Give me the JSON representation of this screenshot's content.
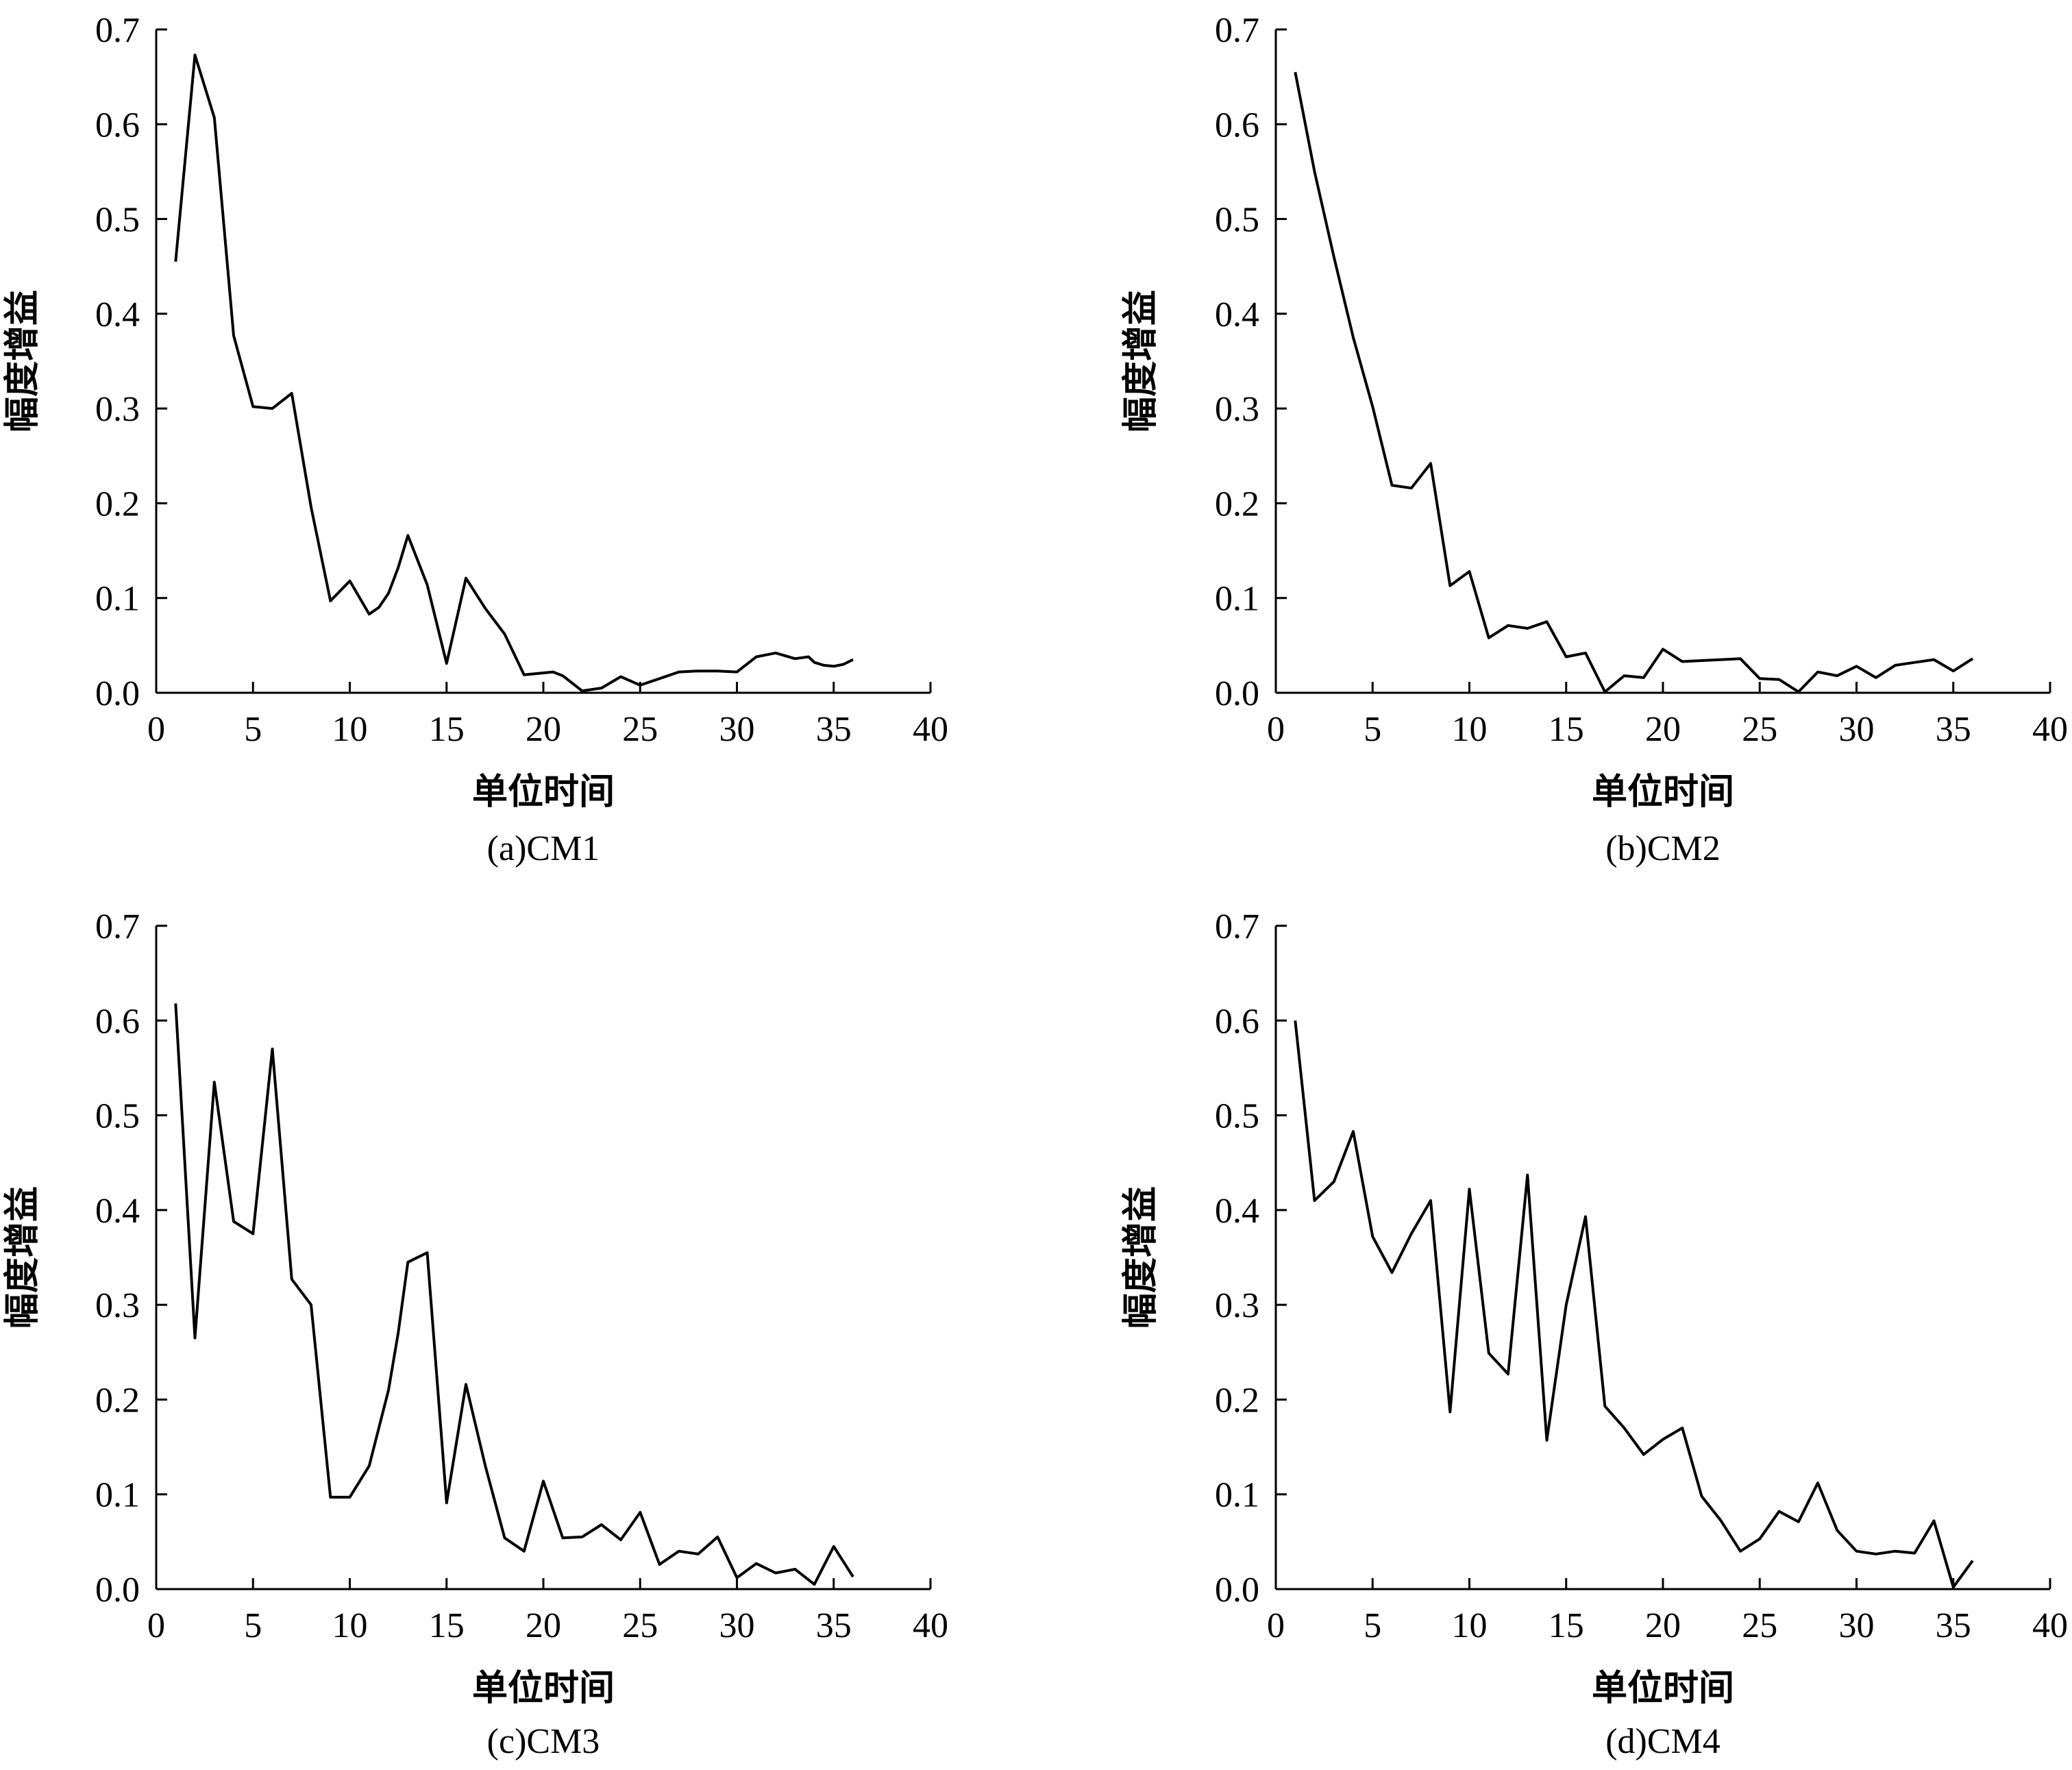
{
  "chart_data": [
    {
      "type": "line",
      "caption": "(a)CM1",
      "xlabel": "单位时间",
      "ylabel": "幅度增益",
      "xlim": [
        0,
        40
      ],
      "ylim": [
        0,
        0.7
      ],
      "xticks": [
        "0",
        "5",
        "10",
        "15",
        "20",
        "25",
        "30",
        "35",
        "40"
      ],
      "yticks": [
        "0.0",
        "0.1",
        "0.2",
        "0.3",
        "0.4",
        "0.5",
        "0.6",
        "0.7"
      ],
      "x": [
        1,
        2,
        3,
        4,
        5,
        6,
        7,
        8,
        9,
        10,
        11,
        11.5,
        12,
        12.5,
        13,
        14,
        15,
        16,
        17,
        18,
        19,
        20,
        20.5,
        21,
        22,
        23,
        24,
        25,
        26,
        27,
        28,
        29,
        30,
        31,
        32,
        33,
        33.7,
        34,
        34.5,
        35,
        35.5,
        36
      ],
      "values": [
        0.455,
        0.673,
        0.607,
        0.377,
        0.302,
        0.3,
        0.316,
        0.196,
        0.097,
        0.118,
        0.083,
        0.09,
        0.105,
        0.132,
        0.166,
        0.114,
        0.031,
        0.121,
        0.089,
        0.062,
        0.019,
        0.021,
        0.022,
        0.018,
        0.002,
        0.005,
        0.017,
        0.008,
        0.015,
        0.022,
        0.023,
        0.023,
        0.022,
        0.038,
        0.042,
        0.036,
        0.038,
        0.032,
        0.029,
        0.028,
        0.03,
        0.035
      ]
    },
    {
      "type": "line",
      "caption": "(b)CM2",
      "xlabel": "单位时间",
      "ylabel": "幅度增益",
      "xlim": [
        0,
        40
      ],
      "ylim": [
        0,
        0.7
      ],
      "xticks": [
        "0",
        "5",
        "10",
        "15",
        "20",
        "25",
        "30",
        "35",
        "40"
      ],
      "yticks": [
        "0.0",
        "0.1",
        "0.2",
        "0.3",
        "0.4",
        "0.5",
        "0.6",
        "0.7"
      ],
      "x": [
        1,
        2,
        3,
        4,
        5,
        6,
        7,
        8,
        9,
        10,
        11,
        12,
        13,
        14,
        15,
        16,
        17,
        18,
        19,
        20,
        21,
        22,
        23,
        24,
        25,
        26,
        27,
        28,
        29,
        30,
        31,
        32,
        33,
        34,
        35,
        36
      ],
      "values": [
        0.655,
        0.55,
        0.46,
        0.375,
        0.302,
        0.219,
        0.216,
        0.242,
        0.113,
        0.128,
        0.058,
        0.071,
        0.068,
        0.075,
        0.038,
        0.042,
        0.001,
        0.018,
        0.016,
        0.046,
        0.033,
        0.034,
        0.035,
        0.036,
        0.015,
        0.014,
        0.001,
        0.022,
        0.018,
        0.028,
        0.016,
        0.029,
        0.032,
        0.035,
        0.023,
        0.036
      ]
    },
    {
      "type": "line",
      "caption": "(c)CM3",
      "xlabel": "单位时间",
      "ylabel": "幅度增益",
      "xlim": [
        0,
        40
      ],
      "ylim": [
        0,
        0.7
      ],
      "xticks": [
        "0",
        "5",
        "10",
        "15",
        "20",
        "25",
        "30",
        "35",
        "40"
      ],
      "yticks": [
        "0.0",
        "0.1",
        "0.2",
        "0.3",
        "0.4",
        "0.5",
        "0.6",
        "0.7"
      ],
      "x": [
        1,
        2,
        3,
        4,
        5,
        6,
        7,
        8,
        9,
        10,
        11,
        12,
        12.5,
        13,
        14,
        15,
        16,
        17,
        18,
        19,
        20,
        21,
        22,
        23,
        24,
        25,
        26,
        27,
        28,
        29,
        30,
        31,
        32,
        33,
        34,
        35,
        36
      ],
      "values": [
        0.618,
        0.265,
        0.535,
        0.388,
        0.375,
        0.57,
        0.327,
        0.3,
        0.097,
        0.097,
        0.13,
        0.21,
        0.27,
        0.345,
        0.355,
        0.091,
        0.216,
        0.13,
        0.054,
        0.04,
        0.114,
        0.054,
        0.055,
        0.068,
        0.052,
        0.081,
        0.026,
        0.04,
        0.037,
        0.055,
        0.012,
        0.027,
        0.017,
        0.021,
        0.005,
        0.045,
        0.013
      ]
    },
    {
      "type": "line",
      "caption": "(d)CM4",
      "xlabel": "单位时间",
      "ylabel": "幅度增益",
      "xlim": [
        0,
        40
      ],
      "ylim": [
        0,
        0.7
      ],
      "xticks": [
        "0",
        "5",
        "10",
        "15",
        "20",
        "25",
        "30",
        "35",
        "40"
      ],
      "yticks": [
        "0.0",
        "0.1",
        "0.2",
        "0.3",
        "0.4",
        "0.5",
        "0.6",
        "0.7"
      ],
      "x": [
        1,
        2,
        3,
        4,
        5,
        6,
        7,
        8,
        9,
        10,
        11,
        12,
        13,
        14,
        15,
        16,
        17,
        18,
        19,
        20,
        21,
        22,
        23,
        24,
        25,
        26,
        27,
        28,
        29,
        30,
        31,
        32,
        33,
        34,
        35,
        36
      ],
      "values": [
        0.6,
        0.41,
        0.43,
        0.483,
        0.372,
        0.334,
        0.375,
        0.41,
        0.187,
        0.422,
        0.249,
        0.227,
        0.437,
        0.157,
        0.3,
        0.393,
        0.193,
        0.17,
        0.142,
        0.158,
        0.17,
        0.098,
        0.072,
        0.04,
        0.053,
        0.082,
        0.071,
        0.112,
        0.062,
        0.04,
        0.037,
        0.04,
        0.038,
        0.072,
        0.002,
        0.03
      ]
    }
  ]
}
